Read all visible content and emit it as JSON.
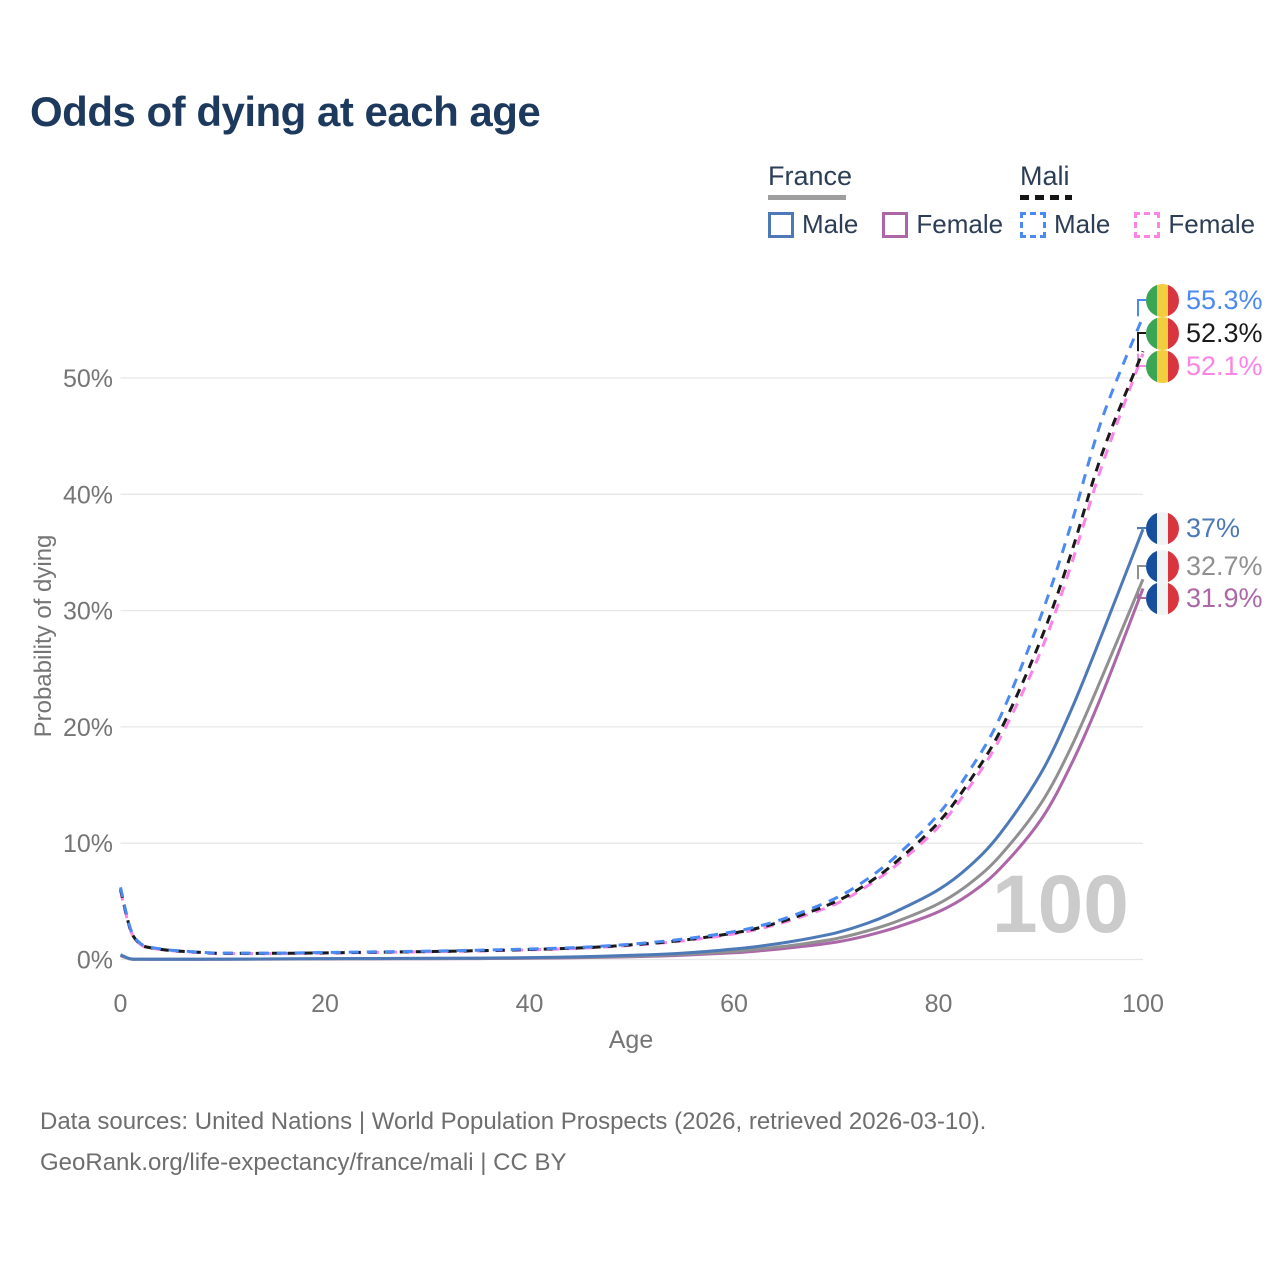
{
  "title": "Odds of dying at each age",
  "legend": {
    "france": {
      "title": "France",
      "male": "Male",
      "female": "Female"
    },
    "mali": {
      "title": "Mali",
      "male": "Male",
      "female": "Female"
    }
  },
  "watermark_age": "100",
  "footer": {
    "line1": "Data sources: United Nations | World Population Prospects (2026, retrieved 2026-03-10).",
    "line2": "GeoRank.org/life-expectancy/france/mali | CC BY"
  },
  "chart_data": {
    "type": "line",
    "title": "Odds of dying at each age",
    "xlabel": "Age",
    "ylabel": "Probability of dying",
    "xlim": [
      0,
      100
    ],
    "ylim": [
      0,
      57
    ],
    "grid": "horizontal",
    "legend_position": "top-right",
    "x_ticks": [
      {
        "v": 0,
        "label": "0"
      },
      {
        "v": 20,
        "label": "20"
      },
      {
        "v": 40,
        "label": "40"
      },
      {
        "v": 60,
        "label": "60"
      },
      {
        "v": 80,
        "label": "80"
      },
      {
        "v": 100,
        "label": "100"
      }
    ],
    "y_ticks": [
      {
        "v": 0,
        "label": "0%"
      },
      {
        "v": 10,
        "label": "10%"
      },
      {
        "v": 20,
        "label": "20%"
      },
      {
        "v": 30,
        "label": "30%"
      },
      {
        "v": 40,
        "label": "40%"
      },
      {
        "v": 50,
        "label": "50%"
      }
    ],
    "x": [
      0,
      1,
      2,
      3,
      4,
      5,
      8,
      10,
      15,
      20,
      25,
      30,
      35,
      40,
      45,
      50,
      55,
      60,
      63,
      66,
      70,
      73,
      76,
      80,
      83,
      86,
      90,
      93,
      96,
      100
    ],
    "series": [
      {
        "id": "france_female",
        "name": "France Female",
        "country": "France",
        "sex": "Female",
        "color": "#ab67a8",
        "dash": false,
        "end_label": "31.9%",
        "end_value": 31.9,
        "values": [
          0.33,
          0.04,
          0.027,
          0.022,
          0.019,
          0.019,
          0.022,
          0.025,
          0.032,
          0.045,
          0.055,
          0.065,
          0.08,
          0.11,
          0.16,
          0.24,
          0.37,
          0.58,
          0.78,
          1.05,
          1.5,
          2.05,
          2.8,
          4.1,
          5.6,
          7.8,
          12.0,
          16.8,
          22.8,
          31.9
        ]
      },
      {
        "id": "france_total",
        "name": "France Both sexes",
        "country": "France",
        "sex": "Both",
        "color": "#909090",
        "dash": false,
        "end_label": "32.7%",
        "end_value": 32.7,
        "values": [
          0.37,
          0.045,
          0.03,
          0.026,
          0.022,
          0.022,
          0.026,
          0.03,
          0.04,
          0.06,
          0.07,
          0.08,
          0.095,
          0.13,
          0.19,
          0.28,
          0.44,
          0.7,
          0.95,
          1.25,
          1.8,
          2.45,
          3.3,
          4.8,
          6.5,
          8.9,
          13.4,
          18.3,
          24.3,
          32.7
        ]
      },
      {
        "id": "france_male",
        "name": "France Male",
        "country": "France",
        "sex": "Male",
        "color": "#4e79b7",
        "dash": false,
        "end_label": "37%",
        "end_value": 37.0,
        "values": [
          0.4,
          0.05,
          0.035,
          0.03,
          0.025,
          0.025,
          0.03,
          0.035,
          0.05,
          0.08,
          0.09,
          0.1,
          0.12,
          0.16,
          0.24,
          0.36,
          0.55,
          0.9,
          1.2,
          1.6,
          2.3,
          3.1,
          4.2,
          6.0,
          8.0,
          10.8,
          16.0,
          21.5,
          28.0,
          37.0
        ]
      },
      {
        "id": "mali_female",
        "name": "Mali Female",
        "country": "Mali",
        "sex": "Female",
        "color": "#fb84e6",
        "dash": true,
        "end_label": "52.1%",
        "end_value": 52.1,
        "values": [
          5.9,
          2.45,
          1.27,
          0.98,
          0.85,
          0.75,
          0.58,
          0.51,
          0.51,
          0.55,
          0.61,
          0.66,
          0.73,
          0.83,
          0.97,
          1.22,
          1.6,
          2.2,
          2.75,
          3.5,
          4.8,
          6.3,
          8.2,
          11.4,
          14.8,
          19.0,
          26.5,
          34.0,
          42.5,
          52.1
        ]
      },
      {
        "id": "mali_total",
        "name": "Mali Both sexes",
        "country": "Mali",
        "sex": "Both",
        "color": "#1a1a1a",
        "dash": true,
        "end_label": "52.3%",
        "end_value": 52.3,
        "values": [
          6.05,
          2.5,
          1.3,
          1.0,
          0.87,
          0.77,
          0.6,
          0.53,
          0.53,
          0.57,
          0.63,
          0.68,
          0.76,
          0.86,
          1.0,
          1.26,
          1.66,
          2.28,
          2.85,
          3.65,
          5.0,
          6.5,
          8.5,
          11.8,
          15.3,
          19.6,
          27.5,
          35.0,
          43.5,
          52.3
        ]
      },
      {
        "id": "mali_male",
        "name": "Mali Male",
        "country": "Mali",
        "sex": "Male",
        "color": "#4b8af2",
        "dash": true,
        "end_label": "55.3%",
        "end_value": 55.3,
        "values": [
          6.2,
          2.6,
          1.35,
          1.05,
          0.9,
          0.8,
          0.62,
          0.55,
          0.55,
          0.6,
          0.66,
          0.72,
          0.8,
          0.9,
          1.05,
          1.32,
          1.75,
          2.4,
          3.0,
          3.85,
          5.3,
          6.9,
          9.0,
          12.5,
          16.2,
          20.8,
          29.5,
          37.5,
          46.5,
          55.3
        ]
      }
    ]
  }
}
